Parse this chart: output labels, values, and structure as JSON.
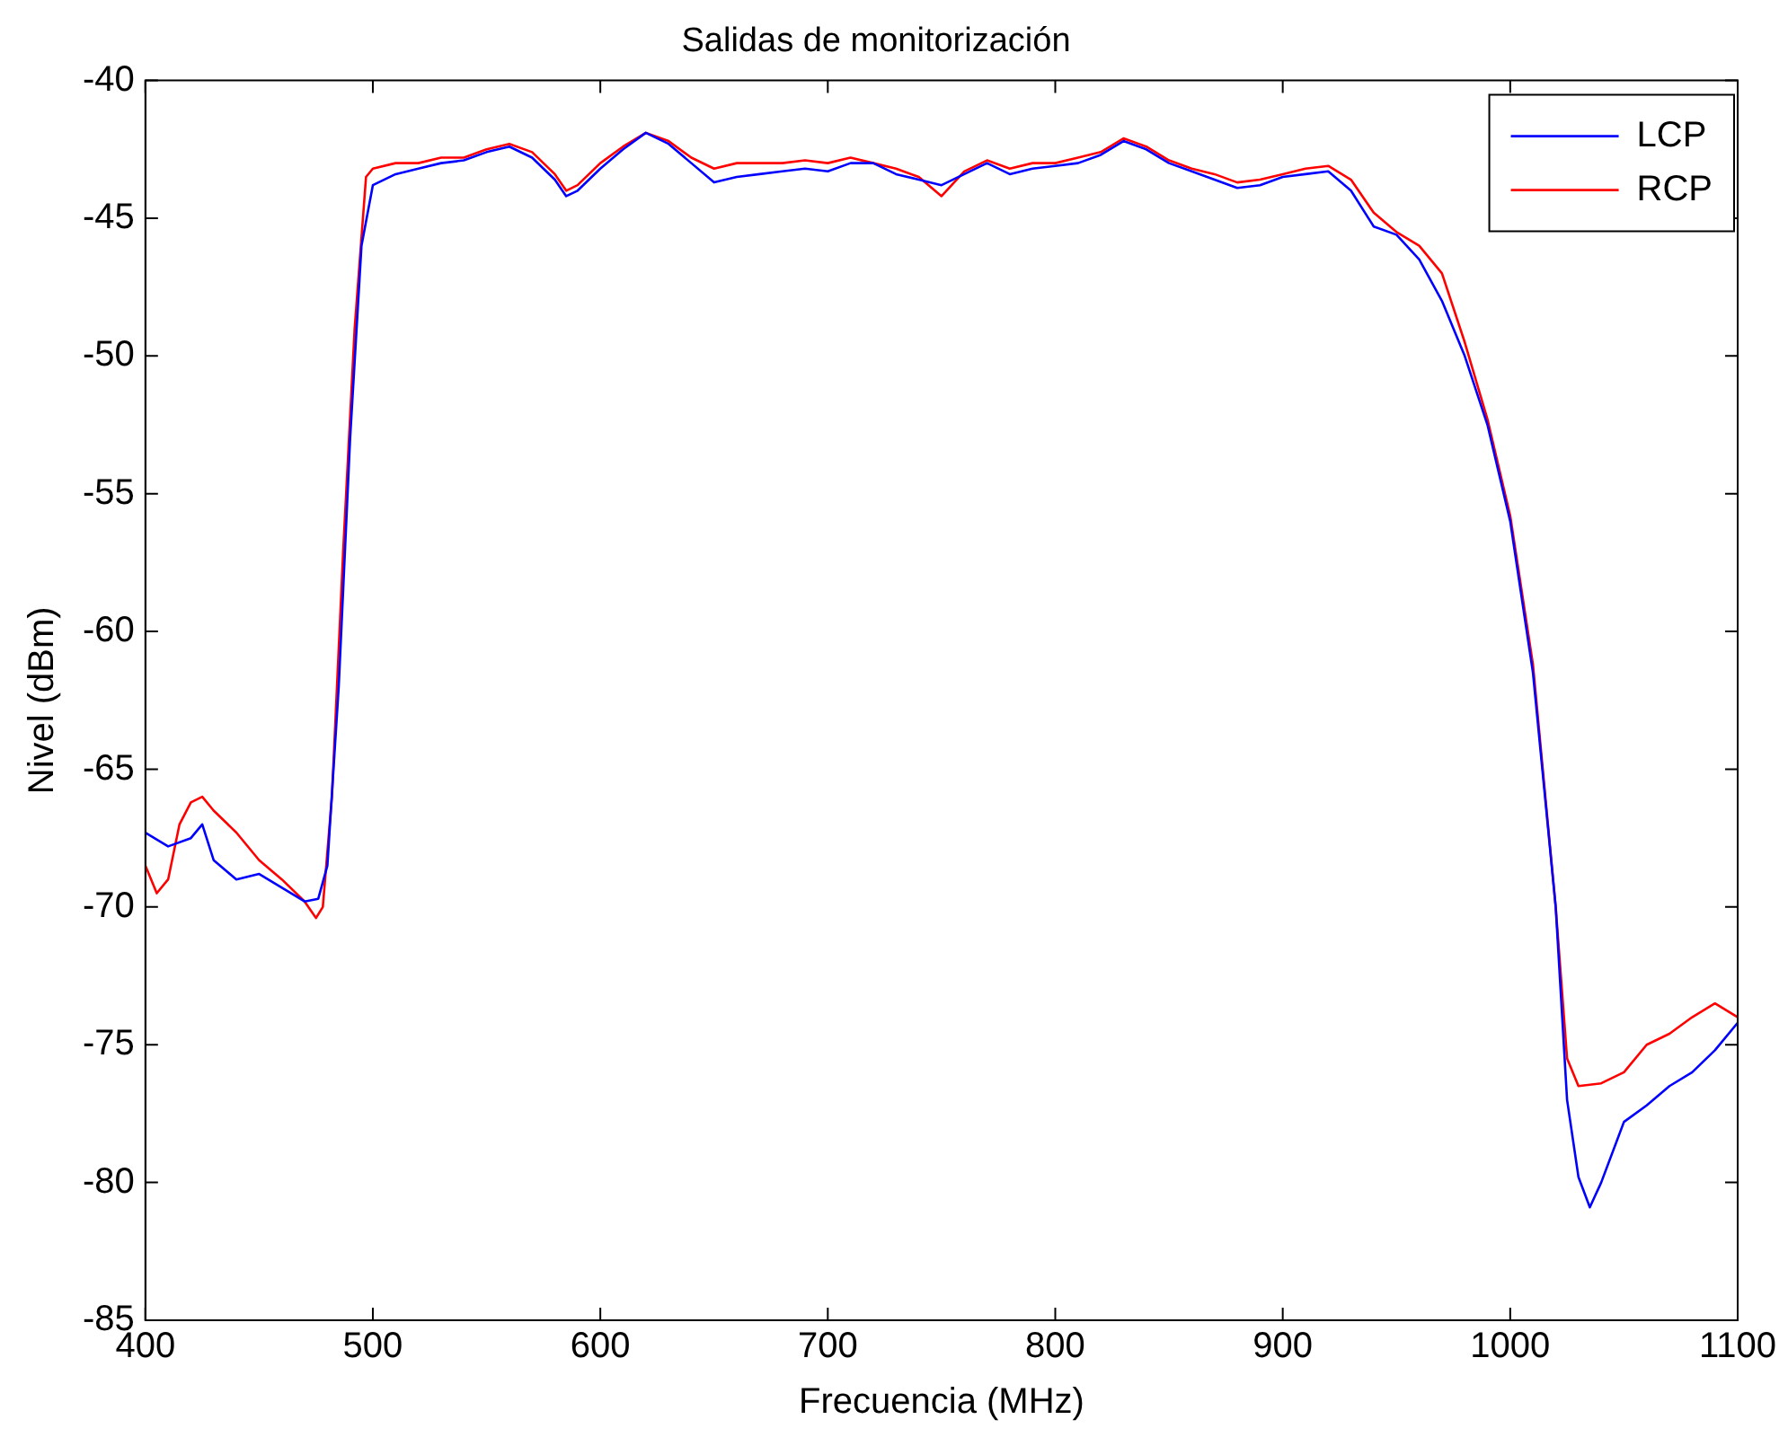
{
  "chart_data": {
    "type": "line",
    "title": "Salidas de monitorización",
    "xlabel": "Frecuencia (MHz)",
    "ylabel": "Nivel (dBm)",
    "xlim": [
      400,
      1100
    ],
    "xticks": [
      400,
      500,
      600,
      700,
      800,
      900,
      1000,
      1100
    ],
    "ylim": [
      -85,
      -40
    ],
    "yticks": [
      -85,
      -80,
      -75,
      -70,
      -65,
      -60,
      -55,
      -50,
      -45,
      -40
    ],
    "grid": false,
    "legend": "top right",
    "marker": "none",
    "line_style": "solid",
    "series": [
      {
        "name": "LCP",
        "color": "#0000ff",
        "x": [
          400,
          410,
          420,
          425,
          430,
          440,
          450,
          460,
          470,
          476,
          480,
          485,
          490,
          495,
          500,
          510,
          520,
          530,
          540,
          550,
          560,
          570,
          580,
          585,
          590,
          600,
          610,
          620,
          630,
          640,
          650,
          660,
          670,
          680,
          690,
          700,
          710,
          720,
          730,
          740,
          750,
          760,
          770,
          780,
          790,
          800,
          810,
          820,
          830,
          840,
          850,
          860,
          870,
          880,
          890,
          900,
          910,
          920,
          930,
          940,
          950,
          960,
          970,
          980,
          990,
          1000,
          1010,
          1020,
          1025,
          1030,
          1035,
          1040,
          1050,
          1060,
          1070,
          1080,
          1090,
          1100
        ],
        "values": [
          -67.3,
          -67.8,
          -67.5,
          -67.0,
          -68.3,
          -69.0,
          -68.8,
          -69.3,
          -69.8,
          -69.7,
          -68.5,
          -62,
          -53,
          -46,
          -43.8,
          -43.4,
          -43.2,
          -43.0,
          -42.9,
          -42.6,
          -42.4,
          -42.8,
          -43.6,
          -44.2,
          -44.0,
          -43.2,
          -42.5,
          -41.9,
          -42.3,
          -43.0,
          -43.7,
          -43.5,
          -43.4,
          -43.3,
          -43.2,
          -43.3,
          -43.0,
          -43.0,
          -43.4,
          -43.6,
          -43.8,
          -43.4,
          -43.0,
          -43.4,
          -43.2,
          -43.1,
          -43.0,
          -42.7,
          -42.2,
          -42.5,
          -43.0,
          -43.3,
          -43.6,
          -43.9,
          -43.8,
          -43.5,
          -43.4,
          -43.3,
          -44.0,
          -45.3,
          -45.6,
          -46.5,
          -48.0,
          -50.0,
          -52.5,
          -56.0,
          -61.5,
          -70.0,
          -77.0,
          -79.8,
          -80.9,
          -80.0,
          -77.8,
          -77.2,
          -76.5,
          -76.0,
          -75.2,
          -74.2
        ]
      },
      {
        "name": "RCP",
        "color": "#ff0000",
        "x": [
          400,
          405,
          410,
          415,
          420,
          425,
          430,
          440,
          450,
          460,
          470,
          475,
          478,
          482,
          487,
          492,
          497,
          500,
          510,
          520,
          530,
          540,
          550,
          560,
          570,
          580,
          585,
          590,
          600,
          610,
          620,
          630,
          640,
          650,
          660,
          670,
          680,
          690,
          700,
          710,
          720,
          730,
          740,
          750,
          760,
          770,
          780,
          790,
          800,
          810,
          820,
          830,
          840,
          850,
          860,
          870,
          880,
          890,
          900,
          910,
          920,
          930,
          940,
          950,
          960,
          970,
          980,
          990,
          1000,
          1010,
          1020,
          1025,
          1030,
          1040,
          1050,
          1060,
          1070,
          1080,
          1090,
          1100
        ],
        "values": [
          -68.5,
          -69.5,
          -69.0,
          -67.0,
          -66.2,
          -66.0,
          -66.5,
          -67.3,
          -68.3,
          -69.0,
          -69.8,
          -70.4,
          -70.0,
          -66,
          -57,
          -49,
          -43.5,
          -43.2,
          -43.0,
          -43.0,
          -42.8,
          -42.8,
          -42.5,
          -42.3,
          -42.6,
          -43.4,
          -44.0,
          -43.8,
          -43.0,
          -42.4,
          -41.9,
          -42.2,
          -42.8,
          -43.2,
          -43.0,
          -43.0,
          -43.0,
          -42.9,
          -43.0,
          -42.8,
          -43.0,
          -43.2,
          -43.5,
          -44.2,
          -43.3,
          -42.9,
          -43.2,
          -43.0,
          -43.0,
          -42.8,
          -42.6,
          -42.1,
          -42.4,
          -42.9,
          -43.2,
          -43.4,
          -43.7,
          -43.6,
          -43.4,
          -43.2,
          -43.1,
          -43.6,
          -44.8,
          -45.5,
          -46.0,
          -47.0,
          -49.5,
          -52.3,
          -55.8,
          -61.2,
          -70.0,
          -75.5,
          -76.5,
          -76.4,
          -76.0,
          -75.0,
          -74.6,
          -74.0,
          -73.5,
          -74.0
        ]
      }
    ]
  }
}
